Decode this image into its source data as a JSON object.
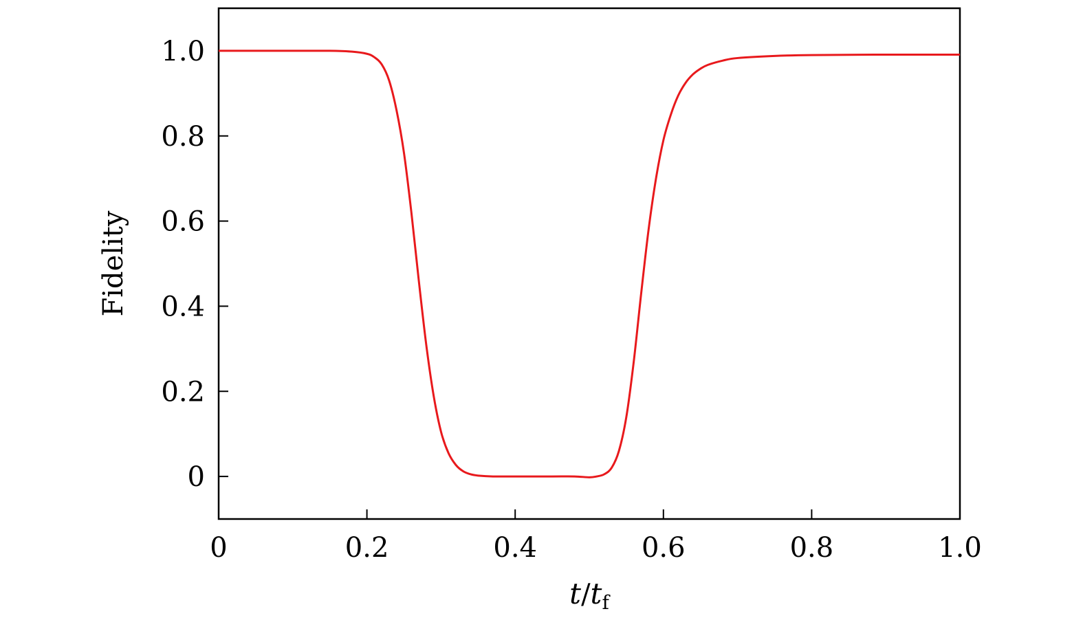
{
  "chart_data": {
    "type": "line",
    "title": "",
    "xlabel": {
      "var": "t",
      "slash": "/",
      "denom_var": "t",
      "denom_sub": "f"
    },
    "ylabel": "Fidelity",
    "xlim": [
      0,
      1.0
    ],
    "ylim": [
      -0.1,
      1.1
    ],
    "xticks": [
      0,
      0.2,
      0.4,
      0.6,
      0.8,
      1.0
    ],
    "xtick_labels": [
      "0",
      "0.2",
      "0.4",
      "0.6",
      "0.8",
      "1.0"
    ],
    "yticks": [
      0,
      0.2,
      0.4,
      0.6,
      0.8,
      1.0
    ],
    "ytick_labels": [
      "0",
      "0.2",
      "0.4",
      "0.6",
      "0.8",
      "1.0"
    ],
    "grid": false,
    "legend": "none",
    "series": [
      {
        "color": "#e8191c",
        "x": [
          0,
          0.05,
          0.1,
          0.15,
          0.18,
          0.2,
          0.21,
          0.22,
          0.23,
          0.24,
          0.25,
          0.26,
          0.27,
          0.28,
          0.29,
          0.3,
          0.31,
          0.32,
          0.33,
          0.34,
          0.35,
          0.37,
          0.4,
          0.45,
          0.48,
          0.5,
          0.51,
          0.52,
          0.53,
          0.54,
          0.55,
          0.56,
          0.57,
          0.58,
          0.59,
          0.6,
          0.61,
          0.62,
          0.63,
          0.64,
          0.65,
          0.66,
          0.68,
          0.7,
          0.75,
          0.8,
          0.9,
          1.0
        ],
        "y": [
          1.0,
          1.0,
          1.0,
          1.0,
          0.998,
          0.993,
          0.985,
          0.968,
          0.93,
          0.86,
          0.76,
          0.62,
          0.46,
          0.31,
          0.19,
          0.105,
          0.055,
          0.027,
          0.012,
          0.005,
          0.002,
          0.0,
          0.0,
          0.0,
          0.0,
          -0.002,
          0.0,
          0.005,
          0.02,
          0.06,
          0.14,
          0.27,
          0.43,
          0.58,
          0.7,
          0.79,
          0.85,
          0.895,
          0.925,
          0.945,
          0.958,
          0.967,
          0.977,
          0.983,
          0.988,
          0.99,
          0.991,
          0.991
        ]
      }
    ]
  }
}
